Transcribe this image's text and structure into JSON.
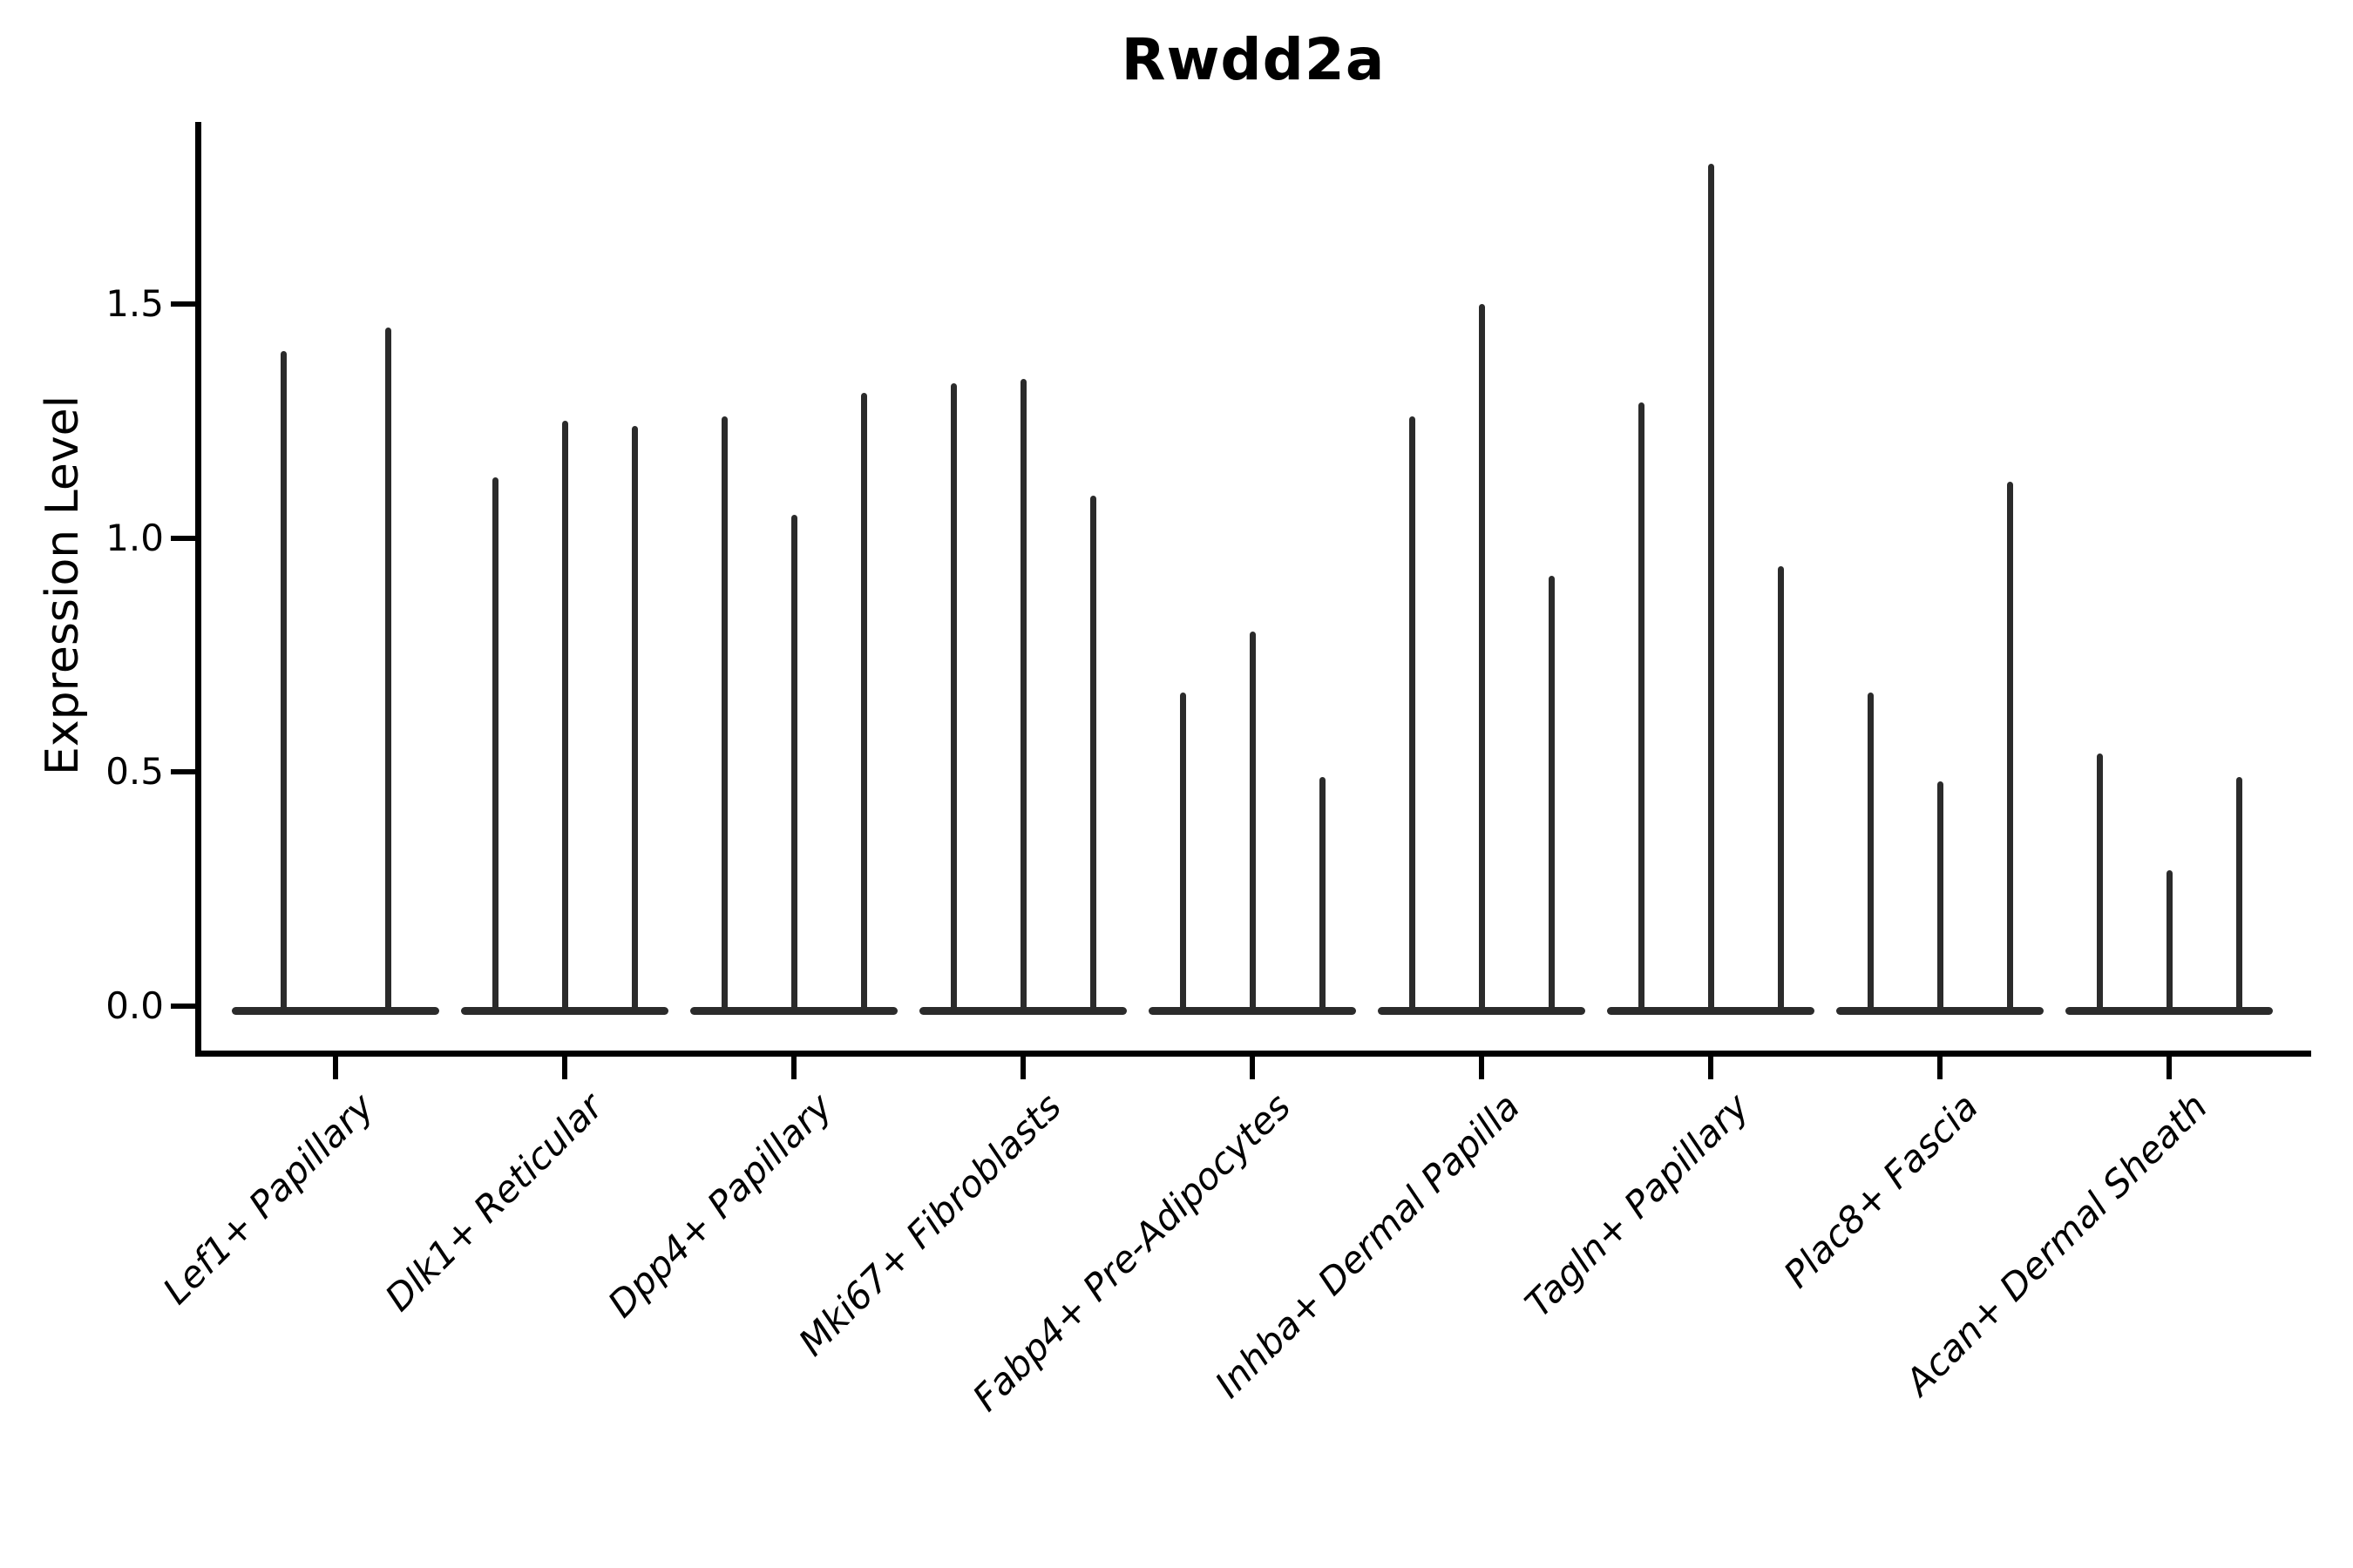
{
  "title": "Rwdd2a",
  "colors": {
    "violin": "#2b2b2b",
    "axis": "#000000",
    "text": "#000000",
    "background": "#ffffff"
  },
  "chart_data": {
    "type": "violin",
    "title": "Rwdd2a",
    "xlabel": "",
    "ylabel": "Expression Level",
    "ylim": [
      -0.09,
      1.89
    ],
    "yticks": [
      0.0,
      0.5,
      1.0,
      1.5
    ],
    "ytick_labels": [
      "0.0",
      "0.5",
      "1.0",
      "1.5"
    ],
    "grid": false,
    "legend": "none",
    "categories": [
      "Lef1+ Papillary",
      "Dlk1+ Reticular",
      "Dpp4+ Papillary",
      "Mki67+ Fibroblasts",
      "Fabp4+ Pre-Adipocytes",
      "Inhba+ Dermal Papilla",
      "Tagln+ Papillary",
      "Plac8+ Fascia",
      "Acan+ Dermal Sheath"
    ],
    "series": [
      {
        "category": "Lef1+ Papillary",
        "violin_peaks": [
          1.4,
          1.45
        ]
      },
      {
        "category": "Dlk1+ Reticular",
        "violin_peaks": [
          1.13,
          1.25,
          1.24
        ]
      },
      {
        "category": "Dpp4+ Papillary",
        "violin_peaks": [
          1.26,
          1.05,
          1.31
        ]
      },
      {
        "category": "Mki67+ Fibroblasts",
        "violin_peaks": [
          1.33,
          1.34,
          1.09
        ]
      },
      {
        "category": "Fabp4+ Pre-Adipocytes",
        "violin_peaks": [
          0.67,
          0.8,
          0.49
        ]
      },
      {
        "category": "Inhba+ Dermal Papilla",
        "violin_peaks": [
          1.26,
          1.5,
          0.92
        ]
      },
      {
        "category": "Tagln+ Papillary",
        "violin_peaks": [
          1.29,
          1.8,
          0.94
        ]
      },
      {
        "category": "Plac8+ Fascia",
        "violin_peaks": [
          0.67,
          0.48,
          1.12
        ]
      },
      {
        "category": "Acan+ Dermal Sheath",
        "violin_peaks": [
          0.54,
          0.29,
          0.49
        ]
      }
    ],
    "violin_shape_note": "each violin is a near-zero-width spike: flat wide base at 0 with a thin vertical line up to the peak value"
  }
}
